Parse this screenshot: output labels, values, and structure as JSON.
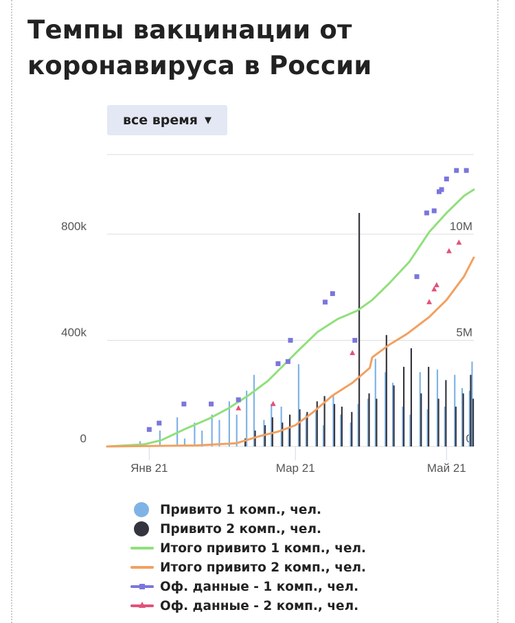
{
  "title": "Темпы вакцинации от коронавируса в России",
  "range_selector": {
    "label": "все время",
    "caret": "▼"
  },
  "colors": {
    "daily1": "#7fb3e6",
    "daily2": "#35353f",
    "total1": "#8fe07a",
    "total2": "#f2a060",
    "off1": "#7a76dd",
    "off2": "#e2527a",
    "grid": "#dddddd",
    "axis_text": "#555555"
  },
  "chart_data": {
    "type": "line",
    "title": "Темпы вакцинации от коронавируса в России",
    "x_ticks": [
      "Янв 21",
      "Мар 21",
      "Май 21"
    ],
    "x_tick_dates": [
      "2021-01-01",
      "2021-03-01",
      "2021-05-01"
    ],
    "x_range": [
      "2020-12-15",
      "2021-05-12"
    ],
    "y_left": {
      "ticks": [
        0,
        400000,
        800000
      ],
      "tick_labels": [
        "0",
        "400k",
        "800k"
      ],
      "range": [
        0,
        1100000
      ]
    },
    "y_right": {
      "ticks": [
        0,
        5000000,
        10000000
      ],
      "tick_labels": [
        "0",
        "5M",
        "10M"
      ],
      "range": [
        0,
        13750000
      ]
    },
    "grid": true,
    "legend_position": "bottom",
    "series": [
      {
        "name": "Привито 1 комп., чел.",
        "type": "bar",
        "axis": "left",
        "color_key": "daily1",
        "x": [
          "2020-12-28",
          "2021-01-05",
          "2021-01-12",
          "2021-01-15",
          "2021-01-19",
          "2021-01-22",
          "2021-01-26",
          "2021-01-29",
          "2021-02-02",
          "2021-02-05",
          "2021-02-09",
          "2021-02-12",
          "2021-02-16",
          "2021-02-19",
          "2021-02-23",
          "2021-02-26",
          "2021-03-02",
          "2021-03-05",
          "2021-03-09",
          "2021-03-12",
          "2021-03-16",
          "2021-03-19",
          "2021-03-23",
          "2021-03-26",
          "2021-03-30",
          "2021-04-02",
          "2021-04-06",
          "2021-04-09",
          "2021-04-13",
          "2021-04-16",
          "2021-04-20",
          "2021-04-23",
          "2021-04-27",
          "2021-04-30",
          "2021-05-04",
          "2021-05-07",
          "2021-05-10",
          "2021-05-11"
        ],
        "values": [
          20000,
          60000,
          110000,
          30000,
          90000,
          60000,
          120000,
          100000,
          170000,
          120000,
          210000,
          270000,
          100000,
          160000,
          150000,
          70000,
          310000,
          120000,
          140000,
          80000,
          190000,
          120000,
          90000,
          160000,
          180000,
          330000,
          280000,
          240000,
          150000,
          120000,
          280000,
          140000,
          290000,
          150000,
          270000,
          220000,
          210000,
          320000
        ]
      },
      {
        "name": "Привито 2 комп., чел.",
        "type": "bar",
        "axis": "left",
        "color_key": "daily2",
        "x": [
          "2021-02-08",
          "2021-02-12",
          "2021-02-16",
          "2021-02-19",
          "2021-02-23",
          "2021-02-26",
          "2021-03-02",
          "2021-03-05",
          "2021-03-09",
          "2021-03-12",
          "2021-03-16",
          "2021-03-19",
          "2021-03-23",
          "2021-03-26",
          "2021-03-30",
          "2021-04-02",
          "2021-04-06",
          "2021-04-09",
          "2021-04-13",
          "2021-04-16",
          "2021-04-20",
          "2021-04-23",
          "2021-04-27",
          "2021-04-30",
          "2021-05-04",
          "2021-05-07",
          "2021-05-10",
          "2021-05-11"
        ],
        "values": [
          30000,
          60000,
          80000,
          110000,
          90000,
          120000,
          140000,
          130000,
          170000,
          190000,
          160000,
          150000,
          130000,
          880000,
          200000,
          180000,
          420000,
          230000,
          300000,
          370000,
          200000,
          300000,
          180000,
          250000,
          150000,
          200000,
          270000,
          180000
        ]
      },
      {
        "name": "Итого привито 1 комп., чел.",
        "type": "line",
        "axis": "right",
        "color_key": "total1",
        "x": [
          "2020-12-15",
          "2020-12-30",
          "2021-01-06",
          "2021-01-15",
          "2021-01-25",
          "2021-02-02",
          "2021-02-10",
          "2021-02-18",
          "2021-02-24",
          "2021-03-02",
          "2021-03-10",
          "2021-03-18",
          "2021-03-26",
          "2021-04-01",
          "2021-04-08",
          "2021-04-16",
          "2021-04-24",
          "2021-05-01",
          "2021-05-08",
          "2021-05-12"
        ],
        "values": [
          0,
          100000,
          300000,
          800000,
          1300000,
          1800000,
          2400000,
          3100000,
          3800000,
          4500000,
          5400000,
          6000000,
          6400000,
          6900000,
          7700000,
          8700000,
          10100000,
          11000000,
          11800000,
          12100000
        ]
      },
      {
        "name": "Итого привито 2 комп., чел.",
        "type": "line",
        "axis": "right",
        "color_key": "total2",
        "x": [
          "2020-12-15",
          "2021-01-20",
          "2021-02-05",
          "2021-02-15",
          "2021-02-22",
          "2021-03-01",
          "2021-03-08",
          "2021-03-16",
          "2021-03-24",
          "2021-03-31",
          "2021-04-01",
          "2021-04-08",
          "2021-04-15",
          "2021-04-24",
          "2021-05-01",
          "2021-05-08",
          "2021-05-12"
        ],
        "values": [
          0,
          50000,
          150000,
          500000,
          700000,
          1000000,
          1600000,
          2400000,
          3000000,
          3700000,
          4200000,
          4800000,
          5300000,
          6100000,
          6900000,
          8000000,
          8900000
        ]
      },
      {
        "name": "Оф. данные - 1 комп., чел.",
        "type": "scatter",
        "marker": "square",
        "axis": "right",
        "color_key": "off1",
        "x": [
          "2021-01-01",
          "2021-01-05",
          "2021-01-15",
          "2021-01-26",
          "2021-02-06",
          "2021-02-22",
          "2021-02-26",
          "2021-02-27",
          "2021-03-13",
          "2021-03-16",
          "2021-03-25",
          "2021-04-19",
          "2021-04-23",
          "2021-04-26",
          "2021-04-28",
          "2021-04-29",
          "2021-05-01",
          "2021-05-05",
          "2021-05-09"
        ],
        "values": [
          800000,
          1100000,
          2000000,
          2000000,
          2200000,
          3900000,
          4000000,
          5000000,
          6800000,
          7200000,
          5000000,
          8000000,
          11000000,
          11100000,
          12000000,
          12100000,
          12600000,
          13000000,
          13000000
        ]
      },
      {
        "name": "Оф. данные - 2 комп., чел.",
        "type": "scatter",
        "marker": "triangle",
        "axis": "right",
        "color_key": "off2",
        "x": [
          "2021-02-06",
          "2021-02-20",
          "2021-03-24",
          "2021-04-24",
          "2021-04-26",
          "2021-04-27",
          "2021-05-02",
          "2021-05-06"
        ],
        "values": [
          1800000,
          2000000,
          4400000,
          6800000,
          7400000,
          7600000,
          9200000,
          9600000
        ]
      }
    ]
  },
  "legend": [
    {
      "label": "Привито 1 комп., чел.",
      "symbol": "dot",
      "color_key": "daily1"
    },
    {
      "label": "Привито 2 комп., чел.",
      "symbol": "dot",
      "color_key": "daily2"
    },
    {
      "label": "Итого привито 1 комп., чел.",
      "symbol": "line",
      "color_key": "total1"
    },
    {
      "label": "Итого привито 2 комп., чел.",
      "symbol": "line",
      "color_key": "total2"
    },
    {
      "label": "Оф. данные - 1 комп., чел.",
      "symbol": "line-square",
      "color_key": "off1"
    },
    {
      "label": "Оф. данные - 2 комп., чел.",
      "symbol": "line-triangle",
      "color_key": "off2"
    }
  ]
}
